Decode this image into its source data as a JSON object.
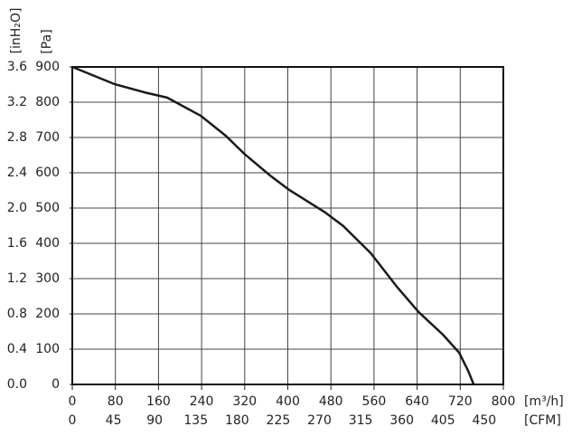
{
  "chart_data": {
    "type": "line",
    "x": [
      0,
      79,
      134,
      176,
      238,
      285,
      319,
      369,
      403,
      470,
      503,
      554,
      604,
      643,
      688,
      718,
      735,
      745
    ],
    "series": [
      {
        "color": "#1a1a1a",
        "values": [
          900,
          851,
          828,
          813,
          762,
          705,
          654,
          590,
          551,
          487,
          449,
          372,
          274,
          205,
          141,
          90,
          38,
          0
        ]
      }
    ],
    "xlim": [
      0,
      800
    ],
    "xticks": [
      0,
      80,
      160,
      240,
      320,
      400,
      480,
      560,
      640,
      720,
      800
    ],
    "x2lim": [
      0,
      470.9
    ],
    "x2ticks": [
      0,
      45,
      90,
      135,
      180,
      225,
      270,
      315,
      360,
      405,
      450
    ],
    "ylim": [
      0,
      900
    ],
    "yticks": [
      0,
      100,
      200,
      300,
      400,
      500,
      600,
      700,
      800,
      900
    ],
    "y2lim": [
      0,
      3.6
    ],
    "y2ticks": [
      {
        "value": 0,
        "label": "0.0"
      },
      0.4,
      0.8,
      1.2,
      1.6,
      {
        "value": 2,
        "label": "2.0"
      },
      2.4,
      2.8,
      3.2,
      3.6
    ],
    "xlabel": "[m³/h]",
    "x2label": "[CFM]",
    "ylabel": "[Pa]",
    "y2label": "[inH₂O]",
    "grid": true
  }
}
